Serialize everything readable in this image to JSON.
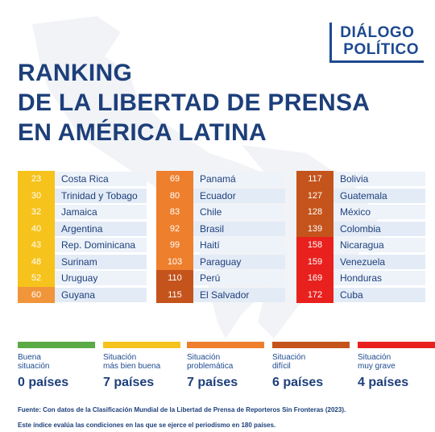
{
  "logo": {
    "line1": "DIÁLOGO",
    "line2": "POLÍTICO"
  },
  "title": {
    "line1": "RANKING",
    "line2": "DE LA LIBERTAD DE PRENSA",
    "line3": "EN AMÉRICA LATINA"
  },
  "columns": [
    {
      "rows": [
        {
          "rank": "23",
          "country": "Costa Rica",
          "color": "#f6c31c"
        },
        {
          "rank": "30",
          "country": "Trinidad y Tobago",
          "color": "#f6c31c"
        },
        {
          "rank": "32",
          "country": "Jamaica",
          "color": "#f6c31c"
        },
        {
          "rank": "40",
          "country": "Argentina",
          "color": "#f6c31c"
        },
        {
          "rank": "43",
          "country": "Rep. Dominicana",
          "color": "#f6c31c"
        },
        {
          "rank": "48",
          "country": "Surinam",
          "color": "#f6c31c"
        },
        {
          "rank": "52",
          "country": "Uruguay",
          "color": "#f6c31c"
        },
        {
          "rank": "60",
          "country": "Guyana",
          "color": "#f0953a"
        }
      ]
    },
    {
      "rows": [
        {
          "rank": "69",
          "country": "Panamá",
          "color": "#ee7f2d"
        },
        {
          "rank": "80",
          "country": "Ecuador",
          "color": "#ee7f2d"
        },
        {
          "rank": "83",
          "country": "Chile",
          "color": "#ee7f2d"
        },
        {
          "rank": "92",
          "country": "Brasil",
          "color": "#ee7f2d"
        },
        {
          "rank": "99",
          "country": "Haití",
          "color": "#ee7f2d"
        },
        {
          "rank": "103",
          "country": "Paraguay",
          "color": "#ee7f2d"
        },
        {
          "rank": "110",
          "country": "Perú",
          "color": "#c4541c"
        },
        {
          "rank": "115",
          "country": "El Salvador",
          "color": "#c4541c"
        }
      ]
    },
    {
      "rows": [
        {
          "rank": "117",
          "country": "Bolivia",
          "color": "#c4541c"
        },
        {
          "rank": "127",
          "country": "Guatemala",
          "color": "#c4541c"
        },
        {
          "rank": "128",
          "country": "México",
          "color": "#c4541c"
        },
        {
          "rank": "139",
          "country": "Colombia",
          "color": "#c4541c"
        },
        {
          "rank": "158",
          "country": "Nicaragua",
          "color": "#e8211e"
        },
        {
          "rank": "159",
          "country": "Venezuela",
          "color": "#e8211e"
        },
        {
          "rank": "169",
          "country": "Honduras",
          "color": "#e8211e"
        },
        {
          "rank": "172",
          "country": "Cuba",
          "color": "#e8211e"
        }
      ]
    }
  ],
  "legend": [
    {
      "line1": "Buena",
      "line2": "situación",
      "count": "0 países",
      "color": "#5aaa46"
    },
    {
      "line1": "Situación",
      "line2": "más bien buena",
      "count": "7 países",
      "color": "#f6c31c"
    },
    {
      "line1": "Situación",
      "line2": "problemática",
      "count": "7 países",
      "color": "#ee7f2d"
    },
    {
      "line1": "Situación",
      "line2": "difícil",
      "count": "6 países",
      "color": "#c4541c"
    },
    {
      "line1": "Situación",
      "line2": "muy grave",
      "count": "4 países",
      "color": "#e8211e"
    }
  ],
  "footer": {
    "source": "Fuente: Con datos de la Clasificación Mundial de la Libertad de Prensa de Reporteros Sin Fronteras (2023).",
    "note": "Este índice evalúa las condiciones en las que se ejerce el periodismo en 180 países."
  }
}
